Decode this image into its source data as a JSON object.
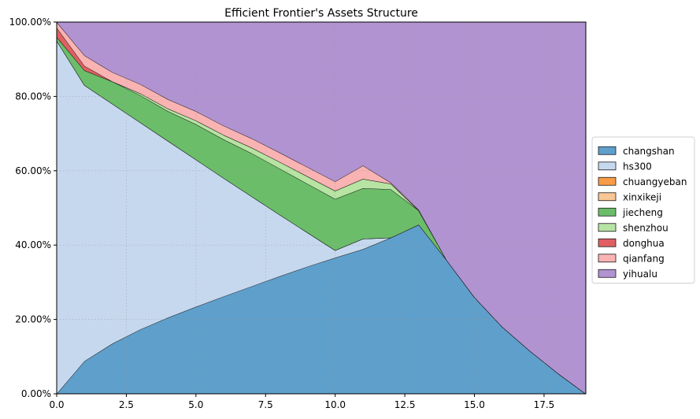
{
  "chart_data": {
    "type": "area",
    "title": "Efficient Frontier's Assets Structure",
    "xlabel": "",
    "ylabel": "",
    "xlim": [
      0,
      19
    ],
    "ylim": [
      0,
      1
    ],
    "stacked": true,
    "grid": true,
    "legend_position": "right",
    "x": [
      0,
      1,
      2,
      3,
      4,
      5,
      6,
      7,
      8,
      9,
      10,
      11,
      12,
      13,
      14,
      15,
      16,
      17,
      18,
      19
    ],
    "x_ticks": [
      0,
      2.5,
      5,
      7.5,
      10,
      12.5,
      15,
      17.5
    ],
    "x_tick_labels": [
      "0.0",
      "2.5",
      "5.0",
      "7.5",
      "10.0",
      "12.5",
      "15.0",
      "17.5"
    ],
    "y_ticks": [
      0,
      0.2,
      0.4,
      0.6,
      0.8,
      1.0
    ],
    "y_tick_labels": [
      "0.00%",
      "20.00%",
      "40.00%",
      "60.00%",
      "80.00%",
      "100.00%"
    ],
    "series": [
      {
        "name": "changshan",
        "color": "#5f9fcb",
        "values": [
          0,
          0.088,
          0.135,
          0.173,
          0.205,
          0.234,
          0.262,
          0.289,
          0.316,
          0.342,
          0.366,
          0.389,
          0.42,
          0.455,
          0.36,
          0.26,
          0.18,
          0.115,
          0.055,
          0
        ]
      },
      {
        "name": "hs300",
        "color": "#c6d8ee",
        "values": [
          0.95,
          0.742,
          0.645,
          0.557,
          0.475,
          0.396,
          0.318,
          0.242,
          0.166,
          0.092,
          0.02,
          0.028,
          0,
          0,
          0,
          0,
          0,
          0,
          0,
          0
        ]
      },
      {
        "name": "chuangyeban",
        "color": "#f99c45",
        "values": [
          0,
          0,
          0,
          0,
          0,
          0,
          0,
          0,
          0,
          0,
          0,
          0,
          0,
          0,
          0,
          0,
          0,
          0,
          0,
          0
        ]
      },
      {
        "name": "xinxikeji",
        "color": "#f8c795",
        "values": [
          0,
          0,
          0,
          0,
          0,
          0,
          0,
          0,
          0,
          0,
          0,
          0,
          0,
          0,
          0,
          0,
          0,
          0,
          0,
          0
        ]
      },
      {
        "name": "jiecheng",
        "color": "#6bbd6a",
        "values": [
          0.01,
          0.04,
          0.06,
          0.073,
          0.08,
          0.095,
          0.104,
          0.116,
          0.124,
          0.131,
          0.138,
          0.136,
          0.13,
          0.038,
          0,
          0,
          0,
          0,
          0,
          0
        ]
      },
      {
        "name": "shenzhou",
        "color": "#b7e3a3",
        "values": [
          0,
          0,
          0,
          0.005,
          0.007,
          0.01,
          0.012,
          0.015,
          0.018,
          0.02,
          0.022,
          0.025,
          0.015,
          0,
          0,
          0,
          0,
          0,
          0,
          0
        ]
      },
      {
        "name": "donghua",
        "color": "#df6062",
        "values": [
          0.025,
          0.012,
          0,
          0,
          0,
          0,
          0,
          0,
          0,
          0,
          0,
          0,
          0,
          0,
          0,
          0,
          0,
          0,
          0,
          0
        ]
      },
      {
        "name": "qianfang",
        "color": "#f8b3b2",
        "values": [
          0.015,
          0.028,
          0.025,
          0.025,
          0.025,
          0.025,
          0.025,
          0.025,
          0.025,
          0.025,
          0.025,
          0.036,
          0.003,
          0.002,
          0,
          0,
          0,
          0,
          0,
          0
        ]
      },
      {
        "name": "yihualu",
        "color": "#b193d1",
        "values": [
          0,
          0.09,
          0.135,
          0.167,
          0.208,
          0.24,
          0.279,
          0.313,
          0.351,
          0.39,
          0.429,
          0.386,
          0.432,
          0.505,
          0.64,
          0.74,
          0.82,
          0.885,
          0.945,
          1.0
        ]
      }
    ]
  }
}
